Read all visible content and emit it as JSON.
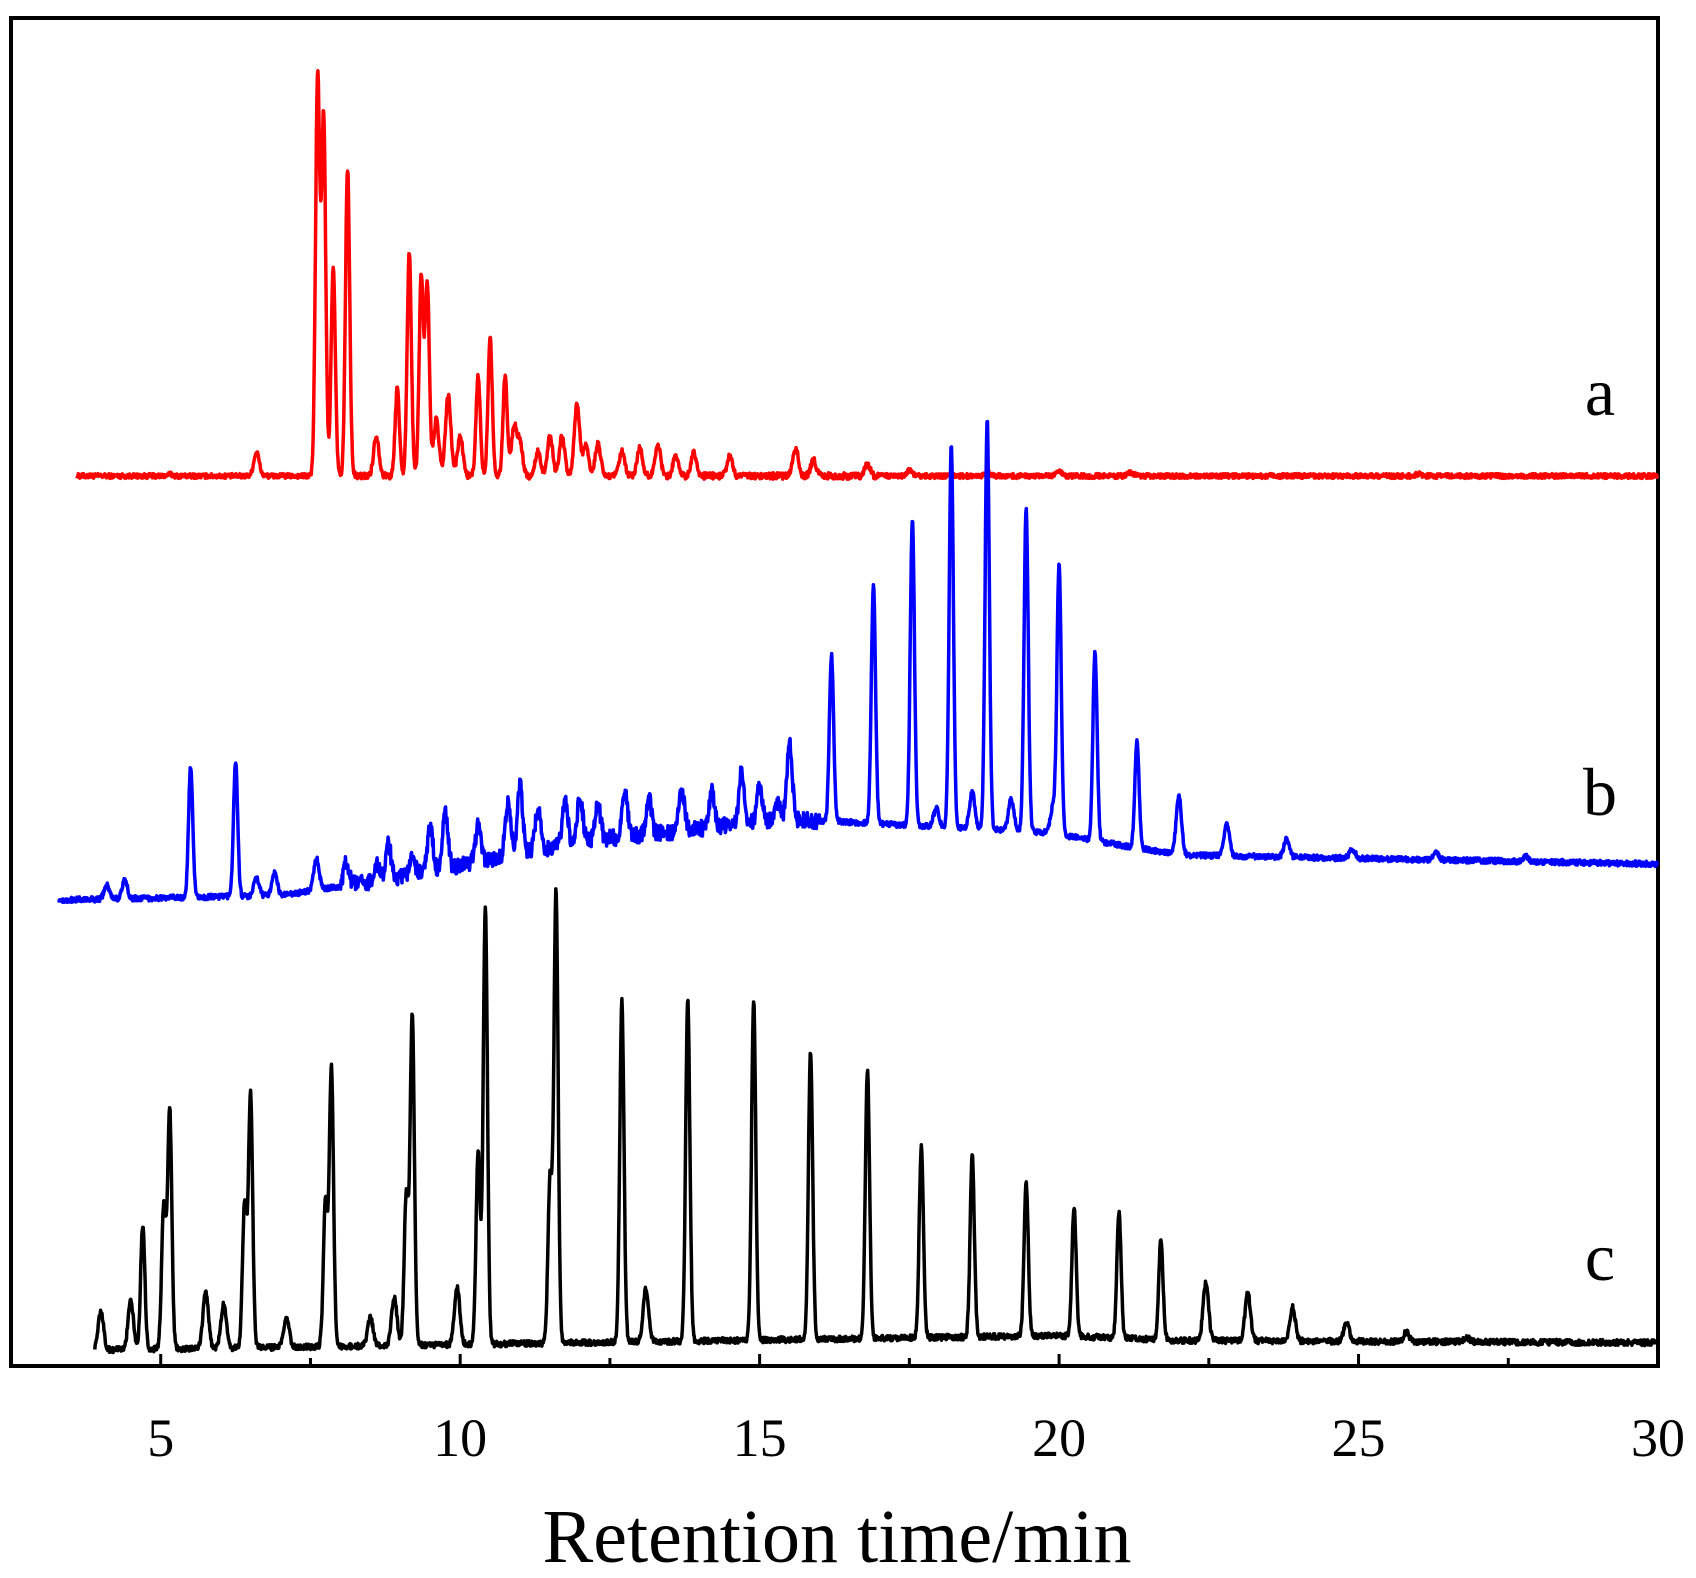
{
  "chart_data": {
    "type": "line",
    "title": "",
    "xlabel": "Retention time/min",
    "ylabel": "",
    "xlim": [
      2.5,
      30
    ],
    "xticks": [
      5,
      10,
      15,
      20,
      25,
      30
    ],
    "grid": false,
    "series": [
      {
        "name": "a",
        "color": "#ff0000",
        "start": 3.6,
        "baseline": 0.0,
        "drift": [
          [
            3.6,
            0.0
          ],
          [
            30,
            0.0
          ]
        ],
        "peaks": [
          [
            5.15,
            0.004
          ],
          [
            6.6,
            0.06
          ],
          [
            7.62,
            1.0
          ],
          [
            7.72,
            0.9
          ],
          [
            7.88,
            0.52
          ],
          [
            8.12,
            0.77
          ],
          [
            8.6,
            0.1
          ],
          [
            8.95,
            0.22
          ],
          [
            9.15,
            0.56
          ],
          [
            9.35,
            0.5
          ],
          [
            9.45,
            0.48
          ],
          [
            9.6,
            0.14
          ],
          [
            9.8,
            0.2
          ],
          [
            10.0,
            0.1
          ],
          [
            10.3,
            0.25
          ],
          [
            10.5,
            0.35
          ],
          [
            10.75,
            0.25
          ],
          [
            10.9,
            0.12
          ],
          [
            11.0,
            0.08
          ],
          [
            11.3,
            0.06
          ],
          [
            11.5,
            0.1
          ],
          [
            11.7,
            0.1
          ],
          [
            11.95,
            0.18
          ],
          [
            12.1,
            0.08
          ],
          [
            12.3,
            0.08
          ],
          [
            12.7,
            0.06
          ],
          [
            13.0,
            0.07
          ],
          [
            13.3,
            0.08
          ],
          [
            13.6,
            0.05
          ],
          [
            13.9,
            0.06
          ],
          [
            14.5,
            0.05
          ],
          [
            15.6,
            0.07
          ],
          [
            15.9,
            0.04
          ],
          [
            16.8,
            0.03
          ],
          [
            17.5,
            0.015
          ],
          [
            18.8,
            0.01
          ],
          [
            20.0,
            0.01
          ],
          [
            21.2,
            0.008
          ],
          [
            26.0,
            0.005
          ]
        ]
      },
      {
        "name": "b",
        "color": "#0000ff",
        "start": 3.3,
        "baseline": 0.0,
        "drift": [
          [
            3.3,
            0.0
          ],
          [
            7.0,
            0.01
          ],
          [
            9.0,
            0.05
          ],
          [
            12.0,
            0.13
          ],
          [
            15.5,
            0.18
          ],
          [
            19.8,
            0.15
          ],
          [
            22.0,
            0.1
          ],
          [
            30,
            0.08
          ]
        ],
        "peaks": [
          [
            4.1,
            0.03
          ],
          [
            4.4,
            0.04
          ],
          [
            5.5,
            0.29
          ],
          [
            6.25,
            0.3
          ],
          [
            6.6,
            0.04
          ],
          [
            6.9,
            0.05
          ],
          [
            7.6,
            0.07
          ],
          [
            8.1,
            0.05
          ],
          [
            8.6,
            0.04
          ],
          [
            8.8,
            0.08
          ],
          [
            9.2,
            0.04
          ],
          [
            9.5,
            0.1
          ],
          [
            9.75,
            0.13
          ],
          [
            10.3,
            0.08
          ],
          [
            10.8,
            0.12
          ],
          [
            11.0,
            0.15
          ],
          [
            11.3,
            0.1
          ],
          [
            11.75,
            0.1
          ],
          [
            12.0,
            0.1
          ],
          [
            12.3,
            0.08
          ],
          [
            12.75,
            0.1
          ],
          [
            13.15,
            0.08
          ],
          [
            13.7,
            0.09
          ],
          [
            14.2,
            0.08
          ],
          [
            14.7,
            0.12
          ],
          [
            15.0,
            0.08
          ],
          [
            15.3,
            0.04
          ],
          [
            15.5,
            0.17
          ],
          [
            16.2,
            0.37
          ],
          [
            16.9,
            0.53
          ],
          [
            17.55,
            0.68
          ],
          [
            17.95,
            0.04
          ],
          [
            18.2,
            0.85
          ],
          [
            18.55,
            0.08
          ],
          [
            18.8,
            0.91
          ],
          [
            19.2,
            0.07
          ],
          [
            19.45,
            0.72
          ],
          [
            19.9,
            0.06
          ],
          [
            20.0,
            0.6
          ],
          [
            20.6,
            0.42
          ],
          [
            21.3,
            0.24
          ],
          [
            22.0,
            0.13
          ],
          [
            22.8,
            0.07
          ],
          [
            23.8,
            0.04
          ],
          [
            24.9,
            0.02
          ],
          [
            26.3,
            0.015
          ],
          [
            27.8,
            0.01
          ]
        ]
      },
      {
        "name": "c",
        "color": "#000000",
        "start": 3.9,
        "baseline": 0.0,
        "drift": [
          [
            3.9,
            0.0
          ],
          [
            20.0,
            0.03
          ],
          [
            22.0,
            0.02
          ],
          [
            30,
            0.015
          ]
        ],
        "peaks": [
          [
            4.0,
            0.08
          ],
          [
            4.5,
            0.1
          ],
          [
            4.7,
            0.26
          ],
          [
            5.05,
            0.3
          ],
          [
            5.15,
            0.5
          ],
          [
            5.75,
            0.12
          ],
          [
            6.05,
            0.09
          ],
          [
            6.4,
            0.3
          ],
          [
            6.5,
            0.53
          ],
          [
            7.1,
            0.06
          ],
          [
            7.75,
            0.3
          ],
          [
            7.85,
            0.58
          ],
          [
            8.5,
            0.06
          ],
          [
            8.9,
            0.1
          ],
          [
            9.1,
            0.31
          ],
          [
            9.2,
            0.69
          ],
          [
            9.95,
            0.12
          ],
          [
            10.3,
            0.4
          ],
          [
            10.42,
            0.91
          ],
          [
            11.5,
            0.34
          ],
          [
            11.6,
            0.94
          ],
          [
            12.7,
            0.71
          ],
          [
            13.1,
            0.11
          ],
          [
            13.8,
            0.71
          ],
          [
            14.9,
            0.71
          ],
          [
            15.85,
            0.6
          ],
          [
            16.8,
            0.56
          ],
          [
            17.7,
            0.4
          ],
          [
            18.55,
            0.38
          ],
          [
            19.45,
            0.32
          ],
          [
            20.25,
            0.27
          ],
          [
            21.0,
            0.26
          ],
          [
            21.7,
            0.21
          ],
          [
            22.45,
            0.12
          ],
          [
            23.15,
            0.1
          ],
          [
            23.9,
            0.07
          ],
          [
            24.8,
            0.04
          ],
          [
            25.8,
            0.02
          ],
          [
            26.8,
            0.01
          ]
        ]
      }
    ],
    "labels": [
      "a",
      "b",
      "c"
    ]
  }
}
